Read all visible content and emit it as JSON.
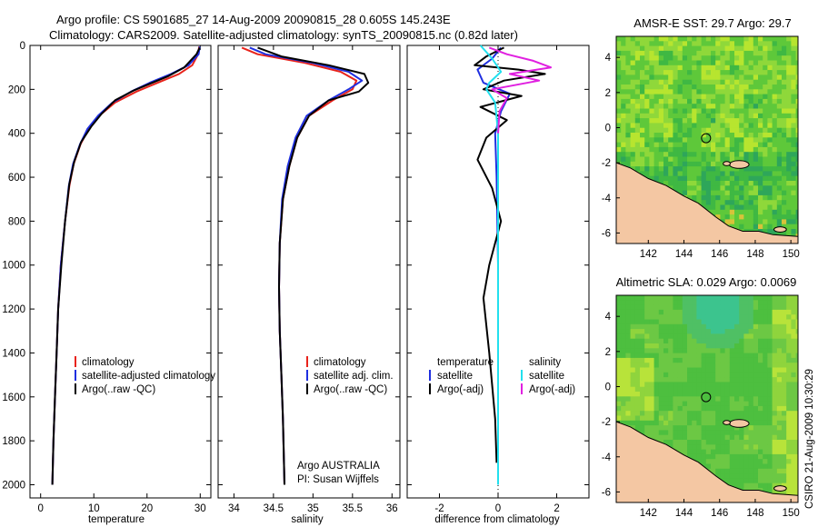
{
  "figure": {
    "title_line1": "Argo profile: CS 5901685_27 14-Aug-2009 20090815_28 0.605S 145.243E",
    "title_line2": "Climatology: CARS2009. Satellite-adjusted climatology: synTS_20090815.nc (0.82d later)",
    "side_label": "CSIRO 21-Aug-2009 10:30:29"
  },
  "colors": {
    "climatology": "#e8231b",
    "satellite": "#1f2fe0",
    "argo": "#000000",
    "salinity_satellite": "#22e0ee",
    "salinity_argo": "#e020e0",
    "land": "#f4c7a3"
  },
  "legends": {
    "temperature": [
      "climatology",
      "satellite-adjusted climatology",
      "Argo(..raw -QC)"
    ],
    "salinity": [
      "climatology",
      "satellite adj. clim.",
      "Argo(..raw -QC)"
    ],
    "diff_temperature_heading": "temperature",
    "diff_temperature": [
      "satellite",
      "Argo(-adj)"
    ],
    "diff_salinity_heading": "salinity",
    "diff_salinity": [
      "satellite",
      "Argo(-adj)"
    ]
  },
  "credits": {
    "line1": "Argo AUSTRALIA",
    "line2": "PI: Susan Wijffels"
  },
  "chart_data": [
    {
      "type": "line",
      "xlabel": "temperature",
      "ylabel": "",
      "xlim": [
        -2,
        32
      ],
      "ylim": [
        0,
        2060
      ],
      "y_reversed": true,
      "xticks": [
        0,
        10,
        20,
        30
      ],
      "yticks": [
        0,
        200,
        400,
        600,
        800,
        1000,
        1200,
        1400,
        1600,
        1800,
        2000
      ],
      "series": [
        {
          "name": "climatology",
          "color_key": "climatology",
          "x": [
            29.8,
            29.6,
            28.5,
            26,
            22,
            18,
            14,
            11,
            9,
            7.5,
            6.2,
            5.4,
            4.6,
            3.8,
            3.3,
            3.0,
            2.7,
            2.4,
            2.2
          ],
          "y": [
            5,
            40,
            90,
            130,
            170,
            210,
            260,
            320,
            380,
            450,
            540,
            640,
            800,
            1000,
            1200,
            1400,
            1600,
            1800,
            2000
          ]
        },
        {
          "name": "satellite-adjusted climatology",
          "color_key": "satellite",
          "x": [
            29.9,
            29.7,
            27.8,
            24.5,
            20.5,
            17,
            13.5,
            10.8,
            8.8,
            7.4,
            6.1,
            5.3,
            4.6,
            3.8,
            3.3,
            3.0,
            2.7,
            2.4,
            2.2
          ],
          "y": [
            5,
            40,
            90,
            130,
            170,
            210,
            260,
            320,
            380,
            450,
            540,
            640,
            800,
            1000,
            1200,
            1400,
            1600,
            1800,
            2000
          ]
        },
        {
          "name": "Argo(..raw -QC)",
          "color_key": "argo",
          "x": [
            29.9,
            29.3,
            27,
            24,
            21,
            17.5,
            14,
            11.5,
            9.5,
            7.6,
            6.3,
            5.4,
            4.6,
            3.9,
            3.3,
            3.0,
            2.7,
            2.4,
            2.2
          ],
          "y": [
            10,
            40,
            100,
            140,
            170,
            205,
            250,
            310,
            370,
            440,
            530,
            630,
            800,
            1000,
            1200,
            1400,
            1600,
            1800,
            2000
          ]
        }
      ]
    },
    {
      "type": "line",
      "xlabel": "salinity",
      "ylabel": "",
      "xlim": [
        33.8,
        36.1
      ],
      "ylim": [
        0,
        2060
      ],
      "y_reversed": true,
      "xticks": [
        34,
        34.5,
        35,
        35.5,
        36
      ],
      "series": [
        {
          "name": "climatology",
          "color_key": "climatology",
          "x": [
            34.1,
            34.3,
            34.9,
            35.35,
            35.55,
            35.5,
            35.25,
            34.95,
            34.8,
            34.7,
            34.62,
            34.58,
            34.57,
            34.58,
            34.6,
            34.62,
            34.64
          ],
          "y": [
            10,
            40,
            80,
            120,
            160,
            200,
            250,
            320,
            420,
            550,
            700,
            900,
            1100,
            1300,
            1500,
            1700,
            2000
          ]
        },
        {
          "name": "satellite adj. clim.",
          "color_key": "satellite",
          "x": [
            34.2,
            34.4,
            35.0,
            35.45,
            35.62,
            35.45,
            35.2,
            34.92,
            34.78,
            34.68,
            34.61,
            34.58,
            34.57,
            34.58,
            34.6,
            34.62,
            34.64
          ],
          "y": [
            10,
            40,
            80,
            120,
            160,
            200,
            250,
            320,
            420,
            550,
            700,
            900,
            1100,
            1300,
            1500,
            1700,
            2000
          ]
        },
        {
          "name": "Argo(..raw -QC)",
          "color_key": "argo",
          "x": [
            34.3,
            34.6,
            35.2,
            35.65,
            35.7,
            35.58,
            35.2,
            34.95,
            34.8,
            34.7,
            34.62,
            34.58,
            34.57,
            34.58,
            34.6,
            34.62,
            34.64
          ],
          "y": [
            10,
            50,
            90,
            130,
            170,
            210,
            250,
            320,
            420,
            550,
            700,
            900,
            1100,
            1300,
            1500,
            1700,
            2000
          ]
        }
      ]
    },
    {
      "type": "line",
      "xlabel": "difference from climatology",
      "ylabel": "",
      "xlim": [
        -3.1,
        3.1
      ],
      "ylim": [
        0,
        2060
      ],
      "y_reversed": true,
      "xticks": [
        -2,
        0,
        2
      ],
      "series": [
        {
          "name": "temperature satellite",
          "color_key": "satellite",
          "x": [
            0.1,
            -0.2,
            -0.7,
            -0.5,
            0.4,
            0.1,
            -0.1,
            -0.05,
            0,
            0,
            0
          ],
          "y": [
            10,
            60,
            110,
            170,
            220,
            300,
            400,
            600,
            1000,
            1500,
            1950
          ]
        },
        {
          "name": "temperature Argo(-adj)",
          "color_key": "argo",
          "x": [
            0.2,
            -0.4,
            -0.8,
            0.7,
            1.6,
            0.2,
            -0.5,
            0.8,
            -0.6,
            0.3,
            -0.4,
            -0.7,
            -0.2,
            0.1,
            -0.3,
            -0.5,
            -0.3,
            -0.1,
            -0.05
          ],
          "y": [
            10,
            50,
            90,
            110,
            130,
            160,
            200,
            230,
            280,
            340,
            420,
            520,
            650,
            800,
            1000,
            1150,
            1400,
            1700,
            1900
          ]
        },
        {
          "name": "salinity satellite",
          "color_key": "salinity_satellite",
          "x": [
            -0.6,
            -0.2,
            0.1,
            -0.3,
            -0.4,
            -0.1,
            0,
            0,
            0,
            0
          ],
          "y": [
            0,
            60,
            120,
            170,
            200,
            260,
            400,
            800,
            1500,
            2000
          ]
        },
        {
          "name": "salinity Argo(-adj)",
          "color_key": "salinity_argo",
          "x": [
            -0.3,
            0.3,
            1.2,
            1.8,
            0.4,
            1.4,
            -0.2,
            0.3,
            0.05,
            0
          ],
          "y": [
            10,
            40,
            70,
            100,
            130,
            160,
            200,
            240,
            300,
            400
          ]
        }
      ]
    },
    {
      "type": "heatmap",
      "title": "AMSR-E SST: 29.7 Argo: 29.7",
      "xlim": [
        140.2,
        150.4
      ],
      "ylim": [
        -6.6,
        5.2
      ],
      "xticks": [
        142,
        144,
        146,
        148,
        150
      ],
      "yticks": [
        -6,
        -4,
        -2,
        0,
        2,
        4
      ],
      "marker": {
        "x": 145.24,
        "y": -0.6
      }
    },
    {
      "type": "heatmap",
      "title": "Altimetric SLA: 0.029 Argo: 0.0069",
      "xlim": [
        140.2,
        150.4
      ],
      "ylim": [
        -6.6,
        5.2
      ],
      "xticks": [
        142,
        144,
        146,
        148,
        150
      ],
      "yticks": [
        -6,
        -4,
        -2,
        0,
        2,
        4
      ],
      "marker": {
        "x": 145.24,
        "y": -0.6
      }
    }
  ]
}
